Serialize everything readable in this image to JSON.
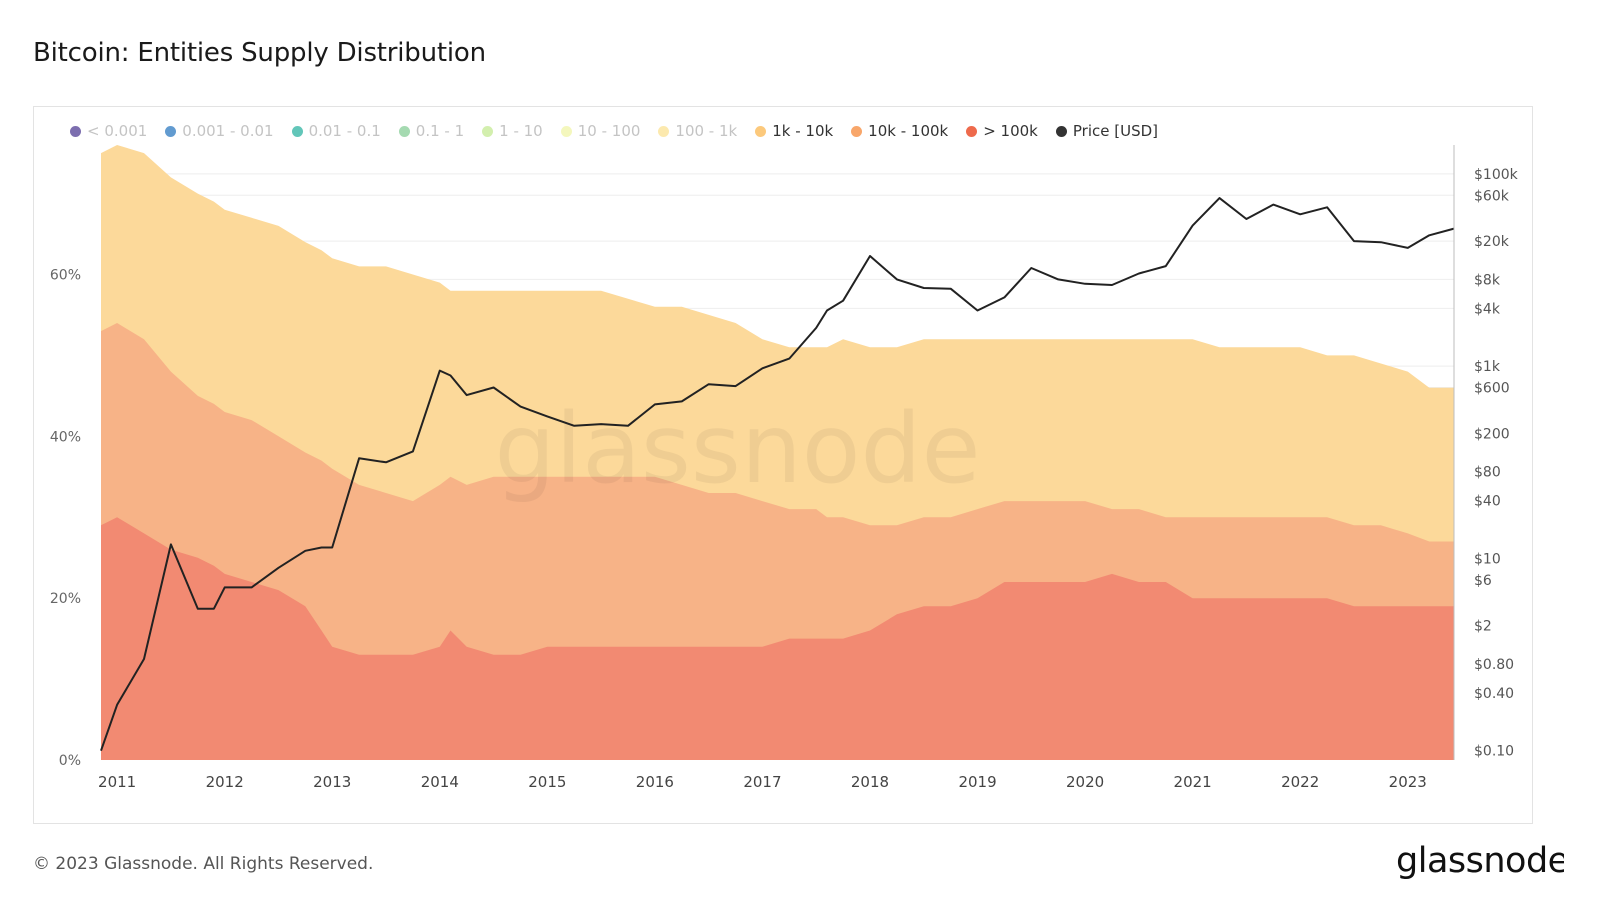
{
  "header": {
    "title": "Bitcoin: Entities Supply Distribution"
  },
  "footer": {
    "copyright": "© 2023 Glassnode. All Rights Reserved.",
    "brand": "glassnode"
  },
  "watermark": "glassnode",
  "legend": [
    {
      "label": "< 0.001",
      "color": "#5b4a9b",
      "active": false
    },
    {
      "label": "0.001 - 0.01",
      "color": "#3b82c4",
      "active": false
    },
    {
      "label": "0.01 - 0.1",
      "color": "#3bb8a8",
      "active": false
    },
    {
      "label": "0.1 - 1",
      "color": "#8fd19e",
      "active": false
    },
    {
      "label": "1 - 10",
      "color": "#c8eb9a",
      "active": false
    },
    {
      "label": "10 - 100",
      "color": "#f1f5ad",
      "active": false
    },
    {
      "label": "100 - 1k",
      "color": "#fbe49a",
      "active": false
    },
    {
      "label": "1k - 10k",
      "color": "#fcc97c",
      "active": true
    },
    {
      "label": "10k - 100k",
      "color": "#f8a66a",
      "active": true
    },
    {
      "label": "> 100k",
      "color": "#ee6a4c",
      "active": true
    },
    {
      "label": "Price [USD]",
      "color": "#333333",
      "active": true
    }
  ],
  "chart_data": {
    "type": "area",
    "xlim": [
      2010.85,
      2023.43
    ],
    "x_ticks": [
      "2011",
      "2012",
      "2013",
      "2014",
      "2015",
      "2016",
      "2017",
      "2018",
      "2019",
      "2020",
      "2021",
      "2022",
      "2023"
    ],
    "ylim_left": [
      0,
      76
    ],
    "y_left_ticks": [
      "0%",
      "20%",
      "40%",
      "60%"
    ],
    "y_right_scale": "log",
    "ylim_right": [
      0.08,
      200000
    ],
    "y_right_ticks": [
      "$100k",
      "$60k",
      "$20k",
      "$8k",
      "$4k",
      "$1k",
      "$600",
      "$200",
      "$80",
      "$40",
      "$10",
      "$6",
      "$2",
      "$0.80",
      "$0.40",
      "$0.10"
    ],
    "grid": true,
    "legend_position": "top",
    "x": [
      2010.85,
      2011.0,
      2011.25,
      2011.5,
      2011.75,
      2011.9,
      2012.0,
      2012.25,
      2012.5,
      2012.75,
      2012.9,
      2013.0,
      2013.25,
      2013.5,
      2013.75,
      2014.0,
      2014.1,
      2014.25,
      2014.5,
      2014.75,
      2015.0,
      2015.25,
      2015.5,
      2015.75,
      2016.0,
      2016.25,
      2016.5,
      2016.75,
      2017.0,
      2017.25,
      2017.5,
      2017.6,
      2017.75,
      2018.0,
      2018.25,
      2018.5,
      2018.75,
      2019.0,
      2019.25,
      2019.5,
      2019.75,
      2020.0,
      2020.25,
      2020.5,
      2020.75,
      2021.0,
      2021.25,
      2021.5,
      2021.75,
      2022.0,
      2022.25,
      2022.5,
      2022.75,
      2023.0,
      2023.2,
      2023.43
    ],
    "series": [
      {
        "name": "> 100k",
        "color": "#f28a72",
        "values": [
          29,
          30,
          28,
          26,
          25,
          24,
          23,
          22,
          21,
          19,
          16,
          14,
          13,
          13,
          13,
          14,
          16,
          14,
          13,
          13,
          14,
          14,
          14,
          14,
          14,
          14,
          14,
          14,
          14,
          15,
          15,
          15,
          15,
          16,
          18,
          19,
          19,
          20,
          22,
          22,
          22,
          22,
          23,
          22,
          22,
          20,
          20,
          20,
          20,
          20,
          20,
          19,
          19,
          19,
          19,
          19
        ]
      },
      {
        "name": "10k - 100k",
        "color": "#f7b387",
        "values": [
          53,
          54,
          52,
          48,
          45,
          44,
          43,
          42,
          40,
          38,
          37,
          36,
          34,
          33,
          32,
          34,
          35,
          34,
          35,
          35,
          35,
          35,
          35,
          35,
          35,
          34,
          33,
          33,
          32,
          31,
          31,
          30,
          30,
          29,
          29,
          30,
          30,
          31,
          32,
          32,
          32,
          32,
          31,
          31,
          30,
          30,
          30,
          30,
          30,
          30,
          30,
          29,
          29,
          28,
          27,
          27
        ]
      },
      {
        "name": "1k - 10k",
        "color": "#fcd99a",
        "values": [
          75,
          76,
          75,
          72,
          70,
          69,
          68,
          67,
          66,
          64,
          63,
          62,
          61,
          61,
          60,
          59,
          58,
          58,
          58,
          58,
          58,
          58,
          58,
          57,
          56,
          56,
          55,
          54,
          52,
          51,
          51,
          51,
          52,
          51,
          51,
          52,
          52,
          52,
          52,
          52,
          52,
          52,
          52,
          52,
          52,
          52,
          51,
          51,
          51,
          51,
          50,
          50,
          49,
          48,
          46,
          46
        ]
      },
      {
        "name": "Price [USD]",
        "color": "#222222",
        "axis": "right",
        "values": [
          0.1,
          0.3,
          0.9,
          14,
          3,
          3,
          5,
          5,
          8,
          12,
          13,
          13,
          110,
          100,
          130,
          900,
          800,
          500,
          600,
          380,
          300,
          240,
          250,
          240,
          400,
          430,
          650,
          620,
          950,
          1200,
          2500,
          3800,
          4800,
          14000,
          8000,
          6500,
          6400,
          3800,
          5200,
          10500,
          8000,
          7200,
          7000,
          9200,
          11000,
          29000,
          56000,
          34000,
          48000,
          38000,
          45000,
          20000,
          19500,
          17000,
          23000,
          27000
        ]
      }
    ]
  }
}
